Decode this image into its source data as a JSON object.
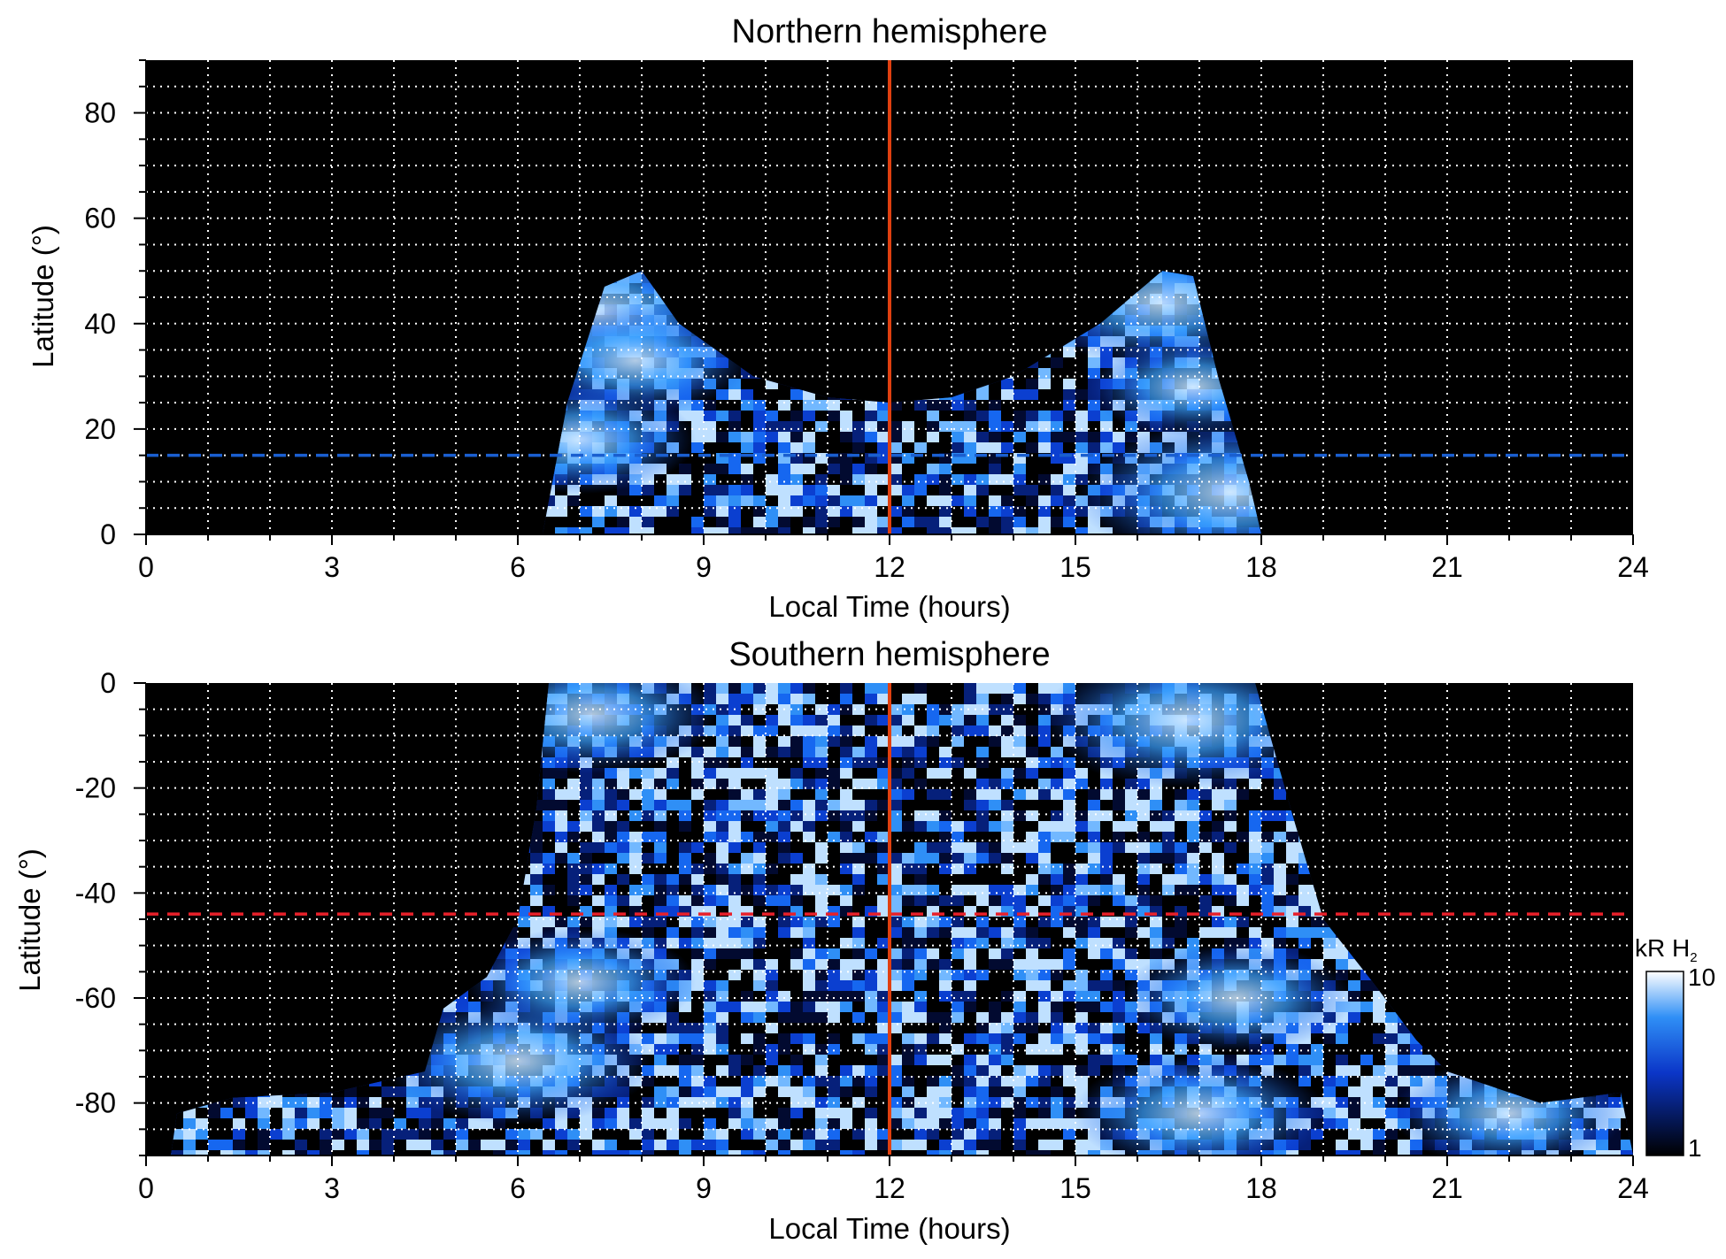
{
  "colors": {
    "background": "#000000",
    "grid": "#ffffff",
    "noon_line": "#e04010",
    "north_dashed": "#1a5fd0",
    "south_dashed": "#e8202a",
    "cmap_low": "#000000",
    "cmap_mid": "#0b44e0",
    "cmap_high": "#ffffff"
  },
  "chart_data": [
    {
      "type": "heatmap",
      "title": "Northern hemisphere",
      "xlabel": "Local Time (hours)",
      "ylabel": "Latitude (°)",
      "xlim": [
        0,
        24
      ],
      "ylim": [
        0,
        90
      ],
      "xticks": [
        0,
        3,
        6,
        9,
        12,
        15,
        18,
        21,
        24
      ],
      "xtick_labels": [
        "0",
        "3",
        "6",
        "9",
        "12",
        "15",
        "18",
        "21",
        "24"
      ],
      "yticks": [
        0,
        20,
        40,
        60,
        80
      ],
      "ytick_labels": [
        "0",
        "20",
        "40",
        "60",
        "80"
      ],
      "grid": true,
      "grid_x_step": 1,
      "grid_y_step": 5,
      "noon_line_x": 12,
      "dashed_line_y": 15,
      "emission_extent": [
        [
          6.4,
          0
        ],
        [
          6.8,
          25
        ],
        [
          7.4,
          47
        ],
        [
          8.0,
          50
        ],
        [
          8.6,
          40
        ],
        [
          9.8,
          30
        ],
        [
          11.0,
          26
        ],
        [
          12.0,
          25
        ],
        [
          13.0,
          26
        ],
        [
          14.0,
          30
        ],
        [
          15.4,
          40
        ],
        [
          16.4,
          50
        ],
        [
          16.9,
          49
        ],
        [
          17.3,
          30
        ],
        [
          17.8,
          10
        ],
        [
          18.0,
          0
        ]
      ],
      "bright_regions": [
        {
          "x": 7.3,
          "y": 42,
          "value": 9
        },
        {
          "x": 7.9,
          "y": 33,
          "value": 6
        },
        {
          "x": 7.0,
          "y": 18,
          "value": 6
        },
        {
          "x": 16.4,
          "y": 44,
          "value": 8
        },
        {
          "x": 16.9,
          "y": 28,
          "value": 5
        },
        {
          "x": 17.5,
          "y": 8,
          "value": 10
        }
      ]
    },
    {
      "type": "heatmap",
      "title": "Southern hemisphere",
      "xlabel": "Local Time (hours)",
      "ylabel": "Latitude (°)",
      "xlim": [
        0,
        24
      ],
      "ylim": [
        -90,
        0
      ],
      "xticks": [
        0,
        3,
        6,
        9,
        12,
        15,
        18,
        21,
        24
      ],
      "xtick_labels": [
        "0",
        "3",
        "6",
        "9",
        "12",
        "15",
        "18",
        "21",
        "24"
      ],
      "yticks": [
        -80,
        -60,
        -40,
        -20,
        0
      ],
      "ytick_labels": [
        "-80",
        "-60",
        "-40",
        "-20",
        "0"
      ],
      "grid": true,
      "grid_x_step": 1,
      "grid_y_step": 5,
      "noon_line_x": 12,
      "dashed_line_y": -44,
      "emission_extent": [
        [
          0.4,
          -90
        ],
        [
          0.5,
          -82
        ],
        [
          1.4,
          -79
        ],
        [
          3.0,
          -78
        ],
        [
          4.5,
          -74
        ],
        [
          4.8,
          -62
        ],
        [
          5.5,
          -56
        ],
        [
          6.0,
          -45
        ],
        [
          6.3,
          -24
        ],
        [
          6.5,
          0
        ],
        [
          17.9,
          0
        ],
        [
          18.5,
          -25
        ],
        [
          19.0,
          -45
        ],
        [
          19.8,
          -57
        ],
        [
          20.5,
          -68
        ],
        [
          21.0,
          -74
        ],
        [
          22.5,
          -80
        ],
        [
          23.8,
          -78
        ],
        [
          24.0,
          -90
        ]
      ],
      "bright_regions": [
        {
          "x": 6.0,
          "y": -72,
          "value": 8
        },
        {
          "x": 7.0,
          "y": -57,
          "value": 6
        },
        {
          "x": 7.2,
          "y": -6,
          "value": 7
        },
        {
          "x": 16.8,
          "y": -7,
          "value": 9
        },
        {
          "x": 17.6,
          "y": -60,
          "value": 6
        },
        {
          "x": 17.0,
          "y": -82,
          "value": 7
        },
        {
          "x": 22.0,
          "y": -82,
          "value": 6
        }
      ]
    }
  ],
  "colorbar": {
    "label": "kR H",
    "subscript": "2",
    "max_label": "10",
    "min_label": "1",
    "range": [
      1,
      10
    ],
    "scale": "log"
  }
}
